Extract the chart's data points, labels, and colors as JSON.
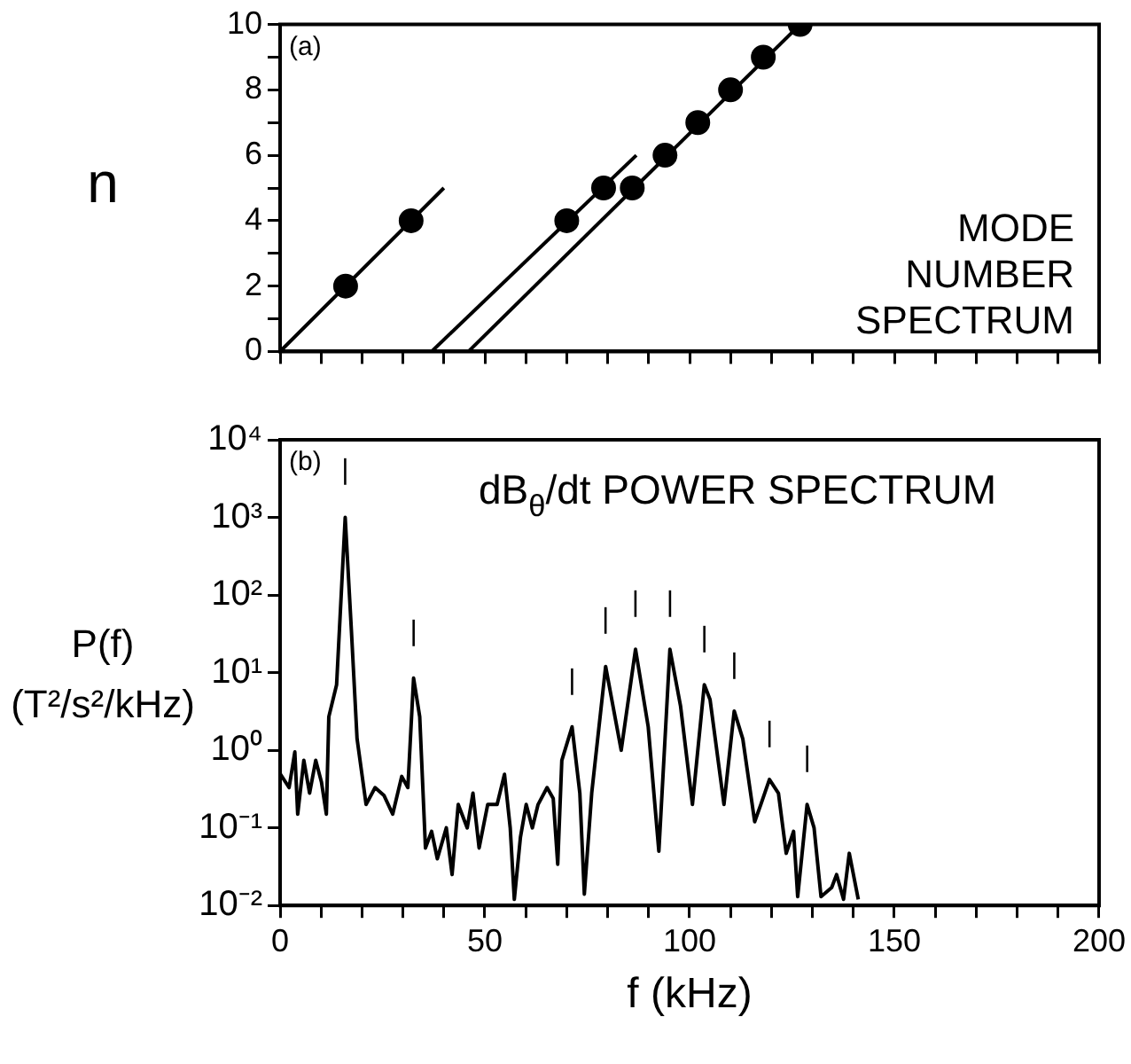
{
  "chart_data": [
    {
      "type": "scatter",
      "title": "MODE NUMBER SPECTRUM",
      "ylabel": "n",
      "annotations": [
        "(a)"
      ],
      "xlim": [
        0,
        200
      ],
      "xticks": [
        0,
        {
          "value": 10,
          "label": null
        },
        {
          "value": 20,
          "label": null
        },
        {
          "value": 30,
          "label": null
        },
        {
          "value": 40,
          "label": null
        },
        50,
        {
          "value": 60,
          "label": null
        },
        {
          "value": 70,
          "label": null
        },
        {
          "value": 80,
          "label": null
        },
        {
          "value": 90,
          "label": null
        },
        100,
        {
          "value": 110,
          "label": null
        },
        {
          "value": 120,
          "label": null
        },
        {
          "value": 130,
          "label": null
        },
        {
          "value": 140,
          "label": null
        },
        150,
        {
          "value": 160,
          "label": null
        },
        {
          "value": 170,
          "label": null
        },
        {
          "value": 180,
          "label": null
        },
        {
          "value": 190,
          "label": null
        },
        200
      ],
      "ylim": [
        0,
        10
      ],
      "yticks": [
        0,
        {
          "value": 1,
          "label": null
        },
        2,
        {
          "value": 3,
          "label": null
        },
        4,
        {
          "value": 5,
          "label": null
        },
        6,
        {
          "value": 7,
          "label": null
        },
        8,
        {
          "value": 9,
          "label": null
        },
        10
      ],
      "tick_labels": "y",
      "grid": false,
      "legend": false,
      "series": [
        {
          "color": "#000000",
          "marker": "circle",
          "x": [
            16,
            32,
            70,
            79,
            86,
            94,
            102,
            110,
            118,
            127
          ],
          "values": [
            2,
            4,
            4,
            5,
            5,
            6,
            7,
            8,
            9,
            10
          ]
        },
        {
          "type": "line",
          "color": "#000000",
          "marker": "none",
          "x": [
            0,
            40
          ],
          "values": [
            0,
            5
          ]
        },
        {
          "type": "line",
          "color": "#000000",
          "marker": "none",
          "x": [
            37,
            87
          ],
          "values": [
            0,
            6
          ]
        },
        {
          "type": "line",
          "color": "#000000",
          "marker": "none",
          "x": [
            46,
            127
          ],
          "values": [
            0,
            10
          ]
        }
      ]
    },
    {
      "type": "line",
      "title": "dB$_{θ}$/dt POWER SPECTRUM",
      "xlabel": "f (kHz)",
      "ylabel": "P(f) (T²/s²/kHz)",
      "log": "y",
      "grid": false,
      "legend": false,
      "annotations": [
        "(b)",
        {
          "text": "|",
          "x": 15.9,
          "y": 1000
        },
        {
          "text": "|",
          "x": 32.6,
          "y": 8.5
        },
        {
          "text": "|",
          "x": 71.3,
          "y": 2
        },
        {
          "text": "|",
          "x": 79.5,
          "y": 12
        },
        {
          "text": "|",
          "x": 86.8,
          "y": 20
        },
        {
          "text": "|",
          "x": 95.2,
          "y": 20
        },
        {
          "text": "|",
          "x": 103.6,
          "y": 7
        },
        {
          "text": "|",
          "x": 110.9,
          "y": 3.2
        },
        {
          "text": "|",
          "x": 119.5,
          "y": 0.42
        },
        {
          "text": "|",
          "x": 128.7,
          "y": 0.2
        }
      ],
      "xlim": [
        0,
        200
      ],
      "xticks": [
        0,
        {
          "value": 10,
          "label": null
        },
        {
          "value": 20,
          "label": null
        },
        {
          "value": 30,
          "label": null
        },
        {
          "value": 40,
          "label": null
        },
        50,
        {
          "value": 60,
          "label": null
        },
        {
          "value": 70,
          "label": null
        },
        {
          "value": 80,
          "label": null
        },
        {
          "value": 90,
          "label": null
        },
        100,
        {
          "value": 110,
          "label": null
        },
        {
          "value": 120,
          "label": null
        },
        {
          "value": 130,
          "label": null
        },
        {
          "value": 140,
          "label": null
        },
        150,
        {
          "value": 160,
          "label": null
        },
        {
          "value": 170,
          "label": null
        },
        {
          "value": 180,
          "label": null
        },
        {
          "value": 190,
          "label": null
        },
        200
      ],
      "ylim": [
        0.01,
        10000
      ],
      "yticks": [
        {
          "value": 0.01,
          "label": "10⁻²"
        },
        {
          "value": 0.1,
          "label": "10⁻¹"
        },
        {
          "value": 1,
          "label": "10⁰"
        },
        {
          "value": 10,
          "label": "10¹"
        },
        {
          "value": 100,
          "label": "10²"
        },
        {
          "value": 1000,
          "label": "10³"
        },
        {
          "value": 10000,
          "label": "10⁴"
        }
      ],
      "series": [
        {
          "color": "#000000",
          "marker": "none",
          "x": [
            0,
            2.2,
            3.6,
            4.3,
            5.8,
            7.2,
            8.7,
            10.1,
            11.3,
            11.9,
            13.8,
            15.9,
            17.4,
            18.8,
            21,
            23.2,
            25.4,
            27.5,
            29.7,
            31.2,
            32.6,
            34.1,
            35.5,
            37,
            38.4,
            40.6,
            42,
            43.5,
            45.7,
            47.1,
            48.6,
            50.7,
            53,
            54.8,
            56.2,
            57.2,
            58.7,
            60.1,
            61.6,
            63,
            65.2,
            66.7,
            67.8,
            68.8,
            71.3,
            73.2,
            74.3,
            76.1,
            79.5,
            83.3,
            86.8,
            89.9,
            92.5,
            95.2,
            97.8,
            100.7,
            103.6,
            105,
            108.4,
            110.9,
            113,
            115.9,
            117.4,
            119.5,
            121.7,
            123.6,
            125.4,
            126.4,
            128.7,
            130.4,
            132.1,
            134.7,
            135.9,
            137.6,
            139,
            141.2
          ],
          "values": [
            0.5,
            0.33,
            0.95,
            0.15,
            0.74,
            0.28,
            0.74,
            0.39,
            0.15,
            2.7,
            7,
            1000,
            36,
            1.4,
            0.2,
            0.33,
            0.26,
            0.15,
            0.46,
            0.33,
            8.5,
            2.7,
            0.055,
            0.09,
            0.04,
            0.1,
            0.025,
            0.2,
            0.1,
            0.28,
            0.055,
            0.2,
            0.2,
            0.49,
            0.1,
            0.012,
            0.076,
            0.2,
            0.1,
            0.2,
            0.33,
            0.24,
            0.034,
            0.74,
            2,
            0.28,
            0.014,
            0.28,
            12,
            1,
            20,
            2,
            0.05,
            20,
            3.7,
            0.2,
            7,
            4.5,
            0.2,
            3.2,
            1.4,
            0.12,
            0.2,
            0.42,
            0.28,
            0.047,
            0.09,
            0.013,
            0.2,
            0.1,
            0.013,
            0.017,
            0.025,
            0.012,
            0.047,
            0.012
          ]
        }
      ]
    }
  ]
}
